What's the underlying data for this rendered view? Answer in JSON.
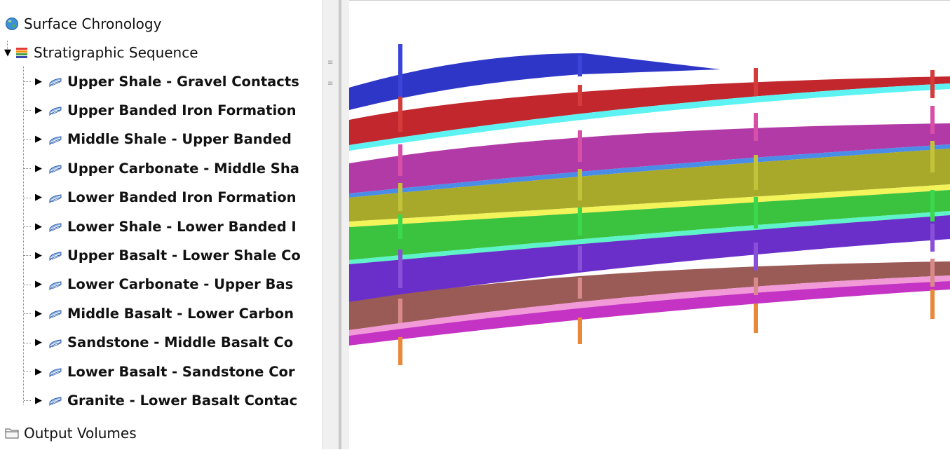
{
  "tree": {
    "root_items": [
      {
        "label": "Surface Chronology",
        "icon": "globe-icon"
      },
      {
        "label": "Stratigraphic Sequence",
        "icon": "stack-layers-icon",
        "expanded": true
      },
      {
        "label": "Output Volumes",
        "icon": "folder-icon"
      }
    ],
    "sequence_items": [
      {
        "label": "Upper Shale - Gravel Contacts",
        "icon": "surface-icon"
      },
      {
        "label": "Upper Banded Iron Formation",
        "icon": "surface-icon"
      },
      {
        "label": "Middle Shale - Upper Banded",
        "icon": "surface-icon"
      },
      {
        "label": "Upper Carbonate - Middle Sha",
        "icon": "surface-icon"
      },
      {
        "label": "Lower Banded Iron Formation",
        "icon": "surface-icon"
      },
      {
        "label": "Lower Shale - Lower Banded I",
        "icon": "surface-icon"
      },
      {
        "label": "Upper Basalt - Lower Shale Co",
        "icon": "surface-icon"
      },
      {
        "label": "Lower Carbonate - Upper Bas",
        "icon": "surface-icon"
      },
      {
        "label": "Middle Basalt - Lower Carbon",
        "icon": "surface-icon"
      },
      {
        "label": "Sandstone - Middle Basalt Co",
        "icon": "surface-icon"
      },
      {
        "label": "Lower Basalt - Sandstone Cor",
        "icon": "surface-icon"
      },
      {
        "label": "Granite - Lower Basalt Contac",
        "icon": "surface-icon"
      }
    ]
  },
  "colors": {
    "layer_blue": "#2e36c8",
    "layer_red": "#c1272d",
    "contact_cyan": "#5ef3f3",
    "layer_magenta": "#b23aa6",
    "layer_olive": "#a8a82a",
    "contact_yellow": "#f3f35a",
    "layer_green": "#3bc23f",
    "layer_purple": "#6a2fc9",
    "layer_brown": "#9a5a56",
    "contact_pink": "#f29ad8",
    "layer_violet": "#c433c4",
    "well_orange": "#e8883a"
  }
}
